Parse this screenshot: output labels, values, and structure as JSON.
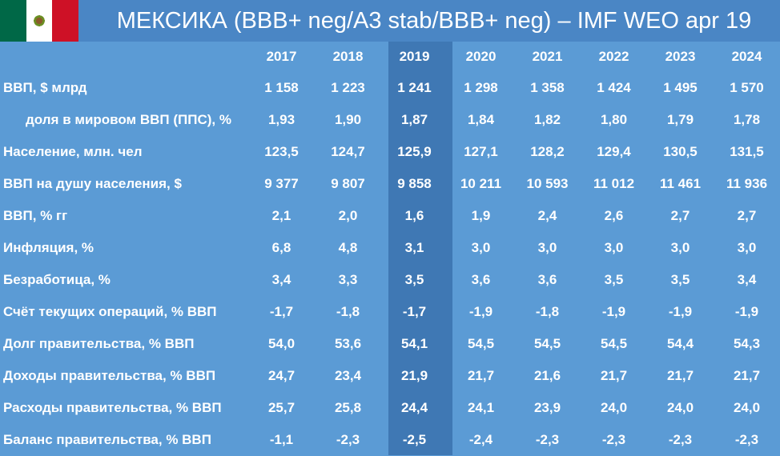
{
  "header": {
    "title": "МЕКСИКА (BBB+ neg/A3 stab/BBB+ neg) – IMF WEO apr 19",
    "flag_icon": "mexico-flag-icon",
    "colors": {
      "background": "#5b9bd5",
      "header": "#4a86c5",
      "highlight_column": "#3f78b4"
    }
  },
  "table": {
    "years": [
      "2017",
      "2018",
      "2019",
      "2020",
      "2021",
      "2022",
      "2023",
      "2024"
    ],
    "rows": [
      {
        "label": "ВВП, $ млрд",
        "indent": false,
        "values": [
          "1 158",
          "1 223",
          "1 241",
          "1 298",
          "1 358",
          "1 424",
          "1 495",
          "1 570"
        ]
      },
      {
        "label": "доля в мировом ВВП (ППС), %",
        "indent": true,
        "values": [
          "1,93",
          "1,90",
          "1,87",
          "1,84",
          "1,82",
          "1,80",
          "1,79",
          "1,78"
        ]
      },
      {
        "label": "Население, млн. чел",
        "indent": false,
        "values": [
          "123,5",
          "124,7",
          "125,9",
          "127,1",
          "128,2",
          "129,4",
          "130,5",
          "131,5"
        ]
      },
      {
        "label": "ВВП на душу населения, $",
        "indent": false,
        "values": [
          "9 377",
          "9 807",
          "9 858",
          "10 211",
          "10 593",
          "11 012",
          "11 461",
          "11 936"
        ]
      },
      {
        "label": "ВВП, % гг",
        "indent": false,
        "values": [
          "2,1",
          "2,0",
          "1,6",
          "1,9",
          "2,4",
          "2,6",
          "2,7",
          "2,7"
        ]
      },
      {
        "label": "Инфляция, %",
        "indent": false,
        "values": [
          "6,8",
          "4,8",
          "3,1",
          "3,0",
          "3,0",
          "3,0",
          "3,0",
          "3,0"
        ]
      },
      {
        "label": "Безработица, %",
        "indent": false,
        "values": [
          "3,4",
          "3,3",
          "3,5",
          "3,6",
          "3,6",
          "3,5",
          "3,5",
          "3,4"
        ]
      },
      {
        "label": "Счёт текущих операций, % ВВП",
        "indent": false,
        "values": [
          "-1,7",
          "-1,8",
          "-1,7",
          "-1,9",
          "-1,8",
          "-1,9",
          "-1,9",
          "-1,9"
        ]
      },
      {
        "label": "Долг правительства, % ВВП",
        "indent": false,
        "values": [
          "54,0",
          "53,6",
          "54,1",
          "54,5",
          "54,5",
          "54,5",
          "54,4",
          "54,3"
        ]
      },
      {
        "label": "Доходы правительства, % ВВП",
        "indent": false,
        "values": [
          "24,7",
          "23,4",
          "21,9",
          "21,7",
          "21,6",
          "21,7",
          "21,7",
          "21,7"
        ]
      },
      {
        "label": "Расходы правительства, % ВВП",
        "indent": false,
        "values": [
          "25,7",
          "25,8",
          "24,4",
          "24,1",
          "23,9",
          "24,0",
          "24,0",
          "24,0"
        ]
      },
      {
        "label": "Баланс правительства, % ВВП",
        "indent": false,
        "values": [
          "-1,1",
          "-2,3",
          "-2,5",
          "-2,4",
          "-2,3",
          "-2,3",
          "-2,3",
          "-2,3"
        ]
      }
    ]
  }
}
